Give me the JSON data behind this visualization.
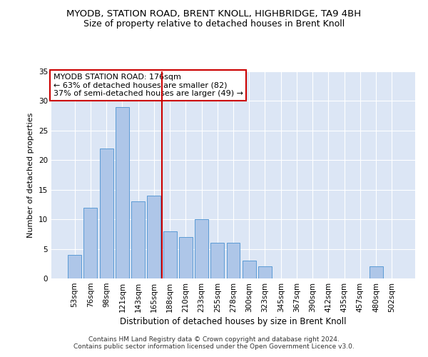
{
  "title": "MYODB, STATION ROAD, BRENT KNOLL, HIGHBRIDGE, TA9 4BH",
  "subtitle": "Size of property relative to detached houses in Brent Knoll",
  "xlabel": "Distribution of detached houses by size in Brent Knoll",
  "ylabel": "Number of detached properties",
  "categories": [
    "53sqm",
    "76sqm",
    "98sqm",
    "121sqm",
    "143sqm",
    "165sqm",
    "188sqm",
    "210sqm",
    "233sqm",
    "255sqm",
    "278sqm",
    "300sqm",
    "323sqm",
    "345sqm",
    "367sqm",
    "390sqm",
    "412sqm",
    "435sqm",
    "457sqm",
    "480sqm",
    "502sqm"
  ],
  "values": [
    4,
    12,
    22,
    29,
    13,
    14,
    8,
    7,
    10,
    6,
    6,
    3,
    2,
    0,
    0,
    0,
    0,
    0,
    0,
    2,
    0
  ],
  "bar_color": "#aec6e8",
  "bar_edge_color": "#5b9bd5",
  "vline_x": 5.5,
  "vline_color": "#cc0000",
  "annotation_line1": "MYODB STATION ROAD: 176sqm",
  "annotation_line2": "← 63% of detached houses are smaller (82)",
  "annotation_line3": "37% of semi-detached houses are larger (49) →",
  "annotation_box_color": "#ffffff",
  "annotation_box_edge": "#cc0000",
  "ylim": [
    0,
    35
  ],
  "yticks": [
    0,
    5,
    10,
    15,
    20,
    25,
    30,
    35
  ],
  "footer": "Contains HM Land Registry data © Crown copyright and database right 2024.\nContains public sector information licensed under the Open Government Licence v3.0.",
  "plot_bg_color": "#dce6f5",
  "title_fontsize": 9.5,
  "subtitle_fontsize": 9,
  "xlabel_fontsize": 8.5,
  "ylabel_fontsize": 8,
  "tick_fontsize": 7.5,
  "footer_fontsize": 6.5,
  "annotation_fontsize": 8
}
